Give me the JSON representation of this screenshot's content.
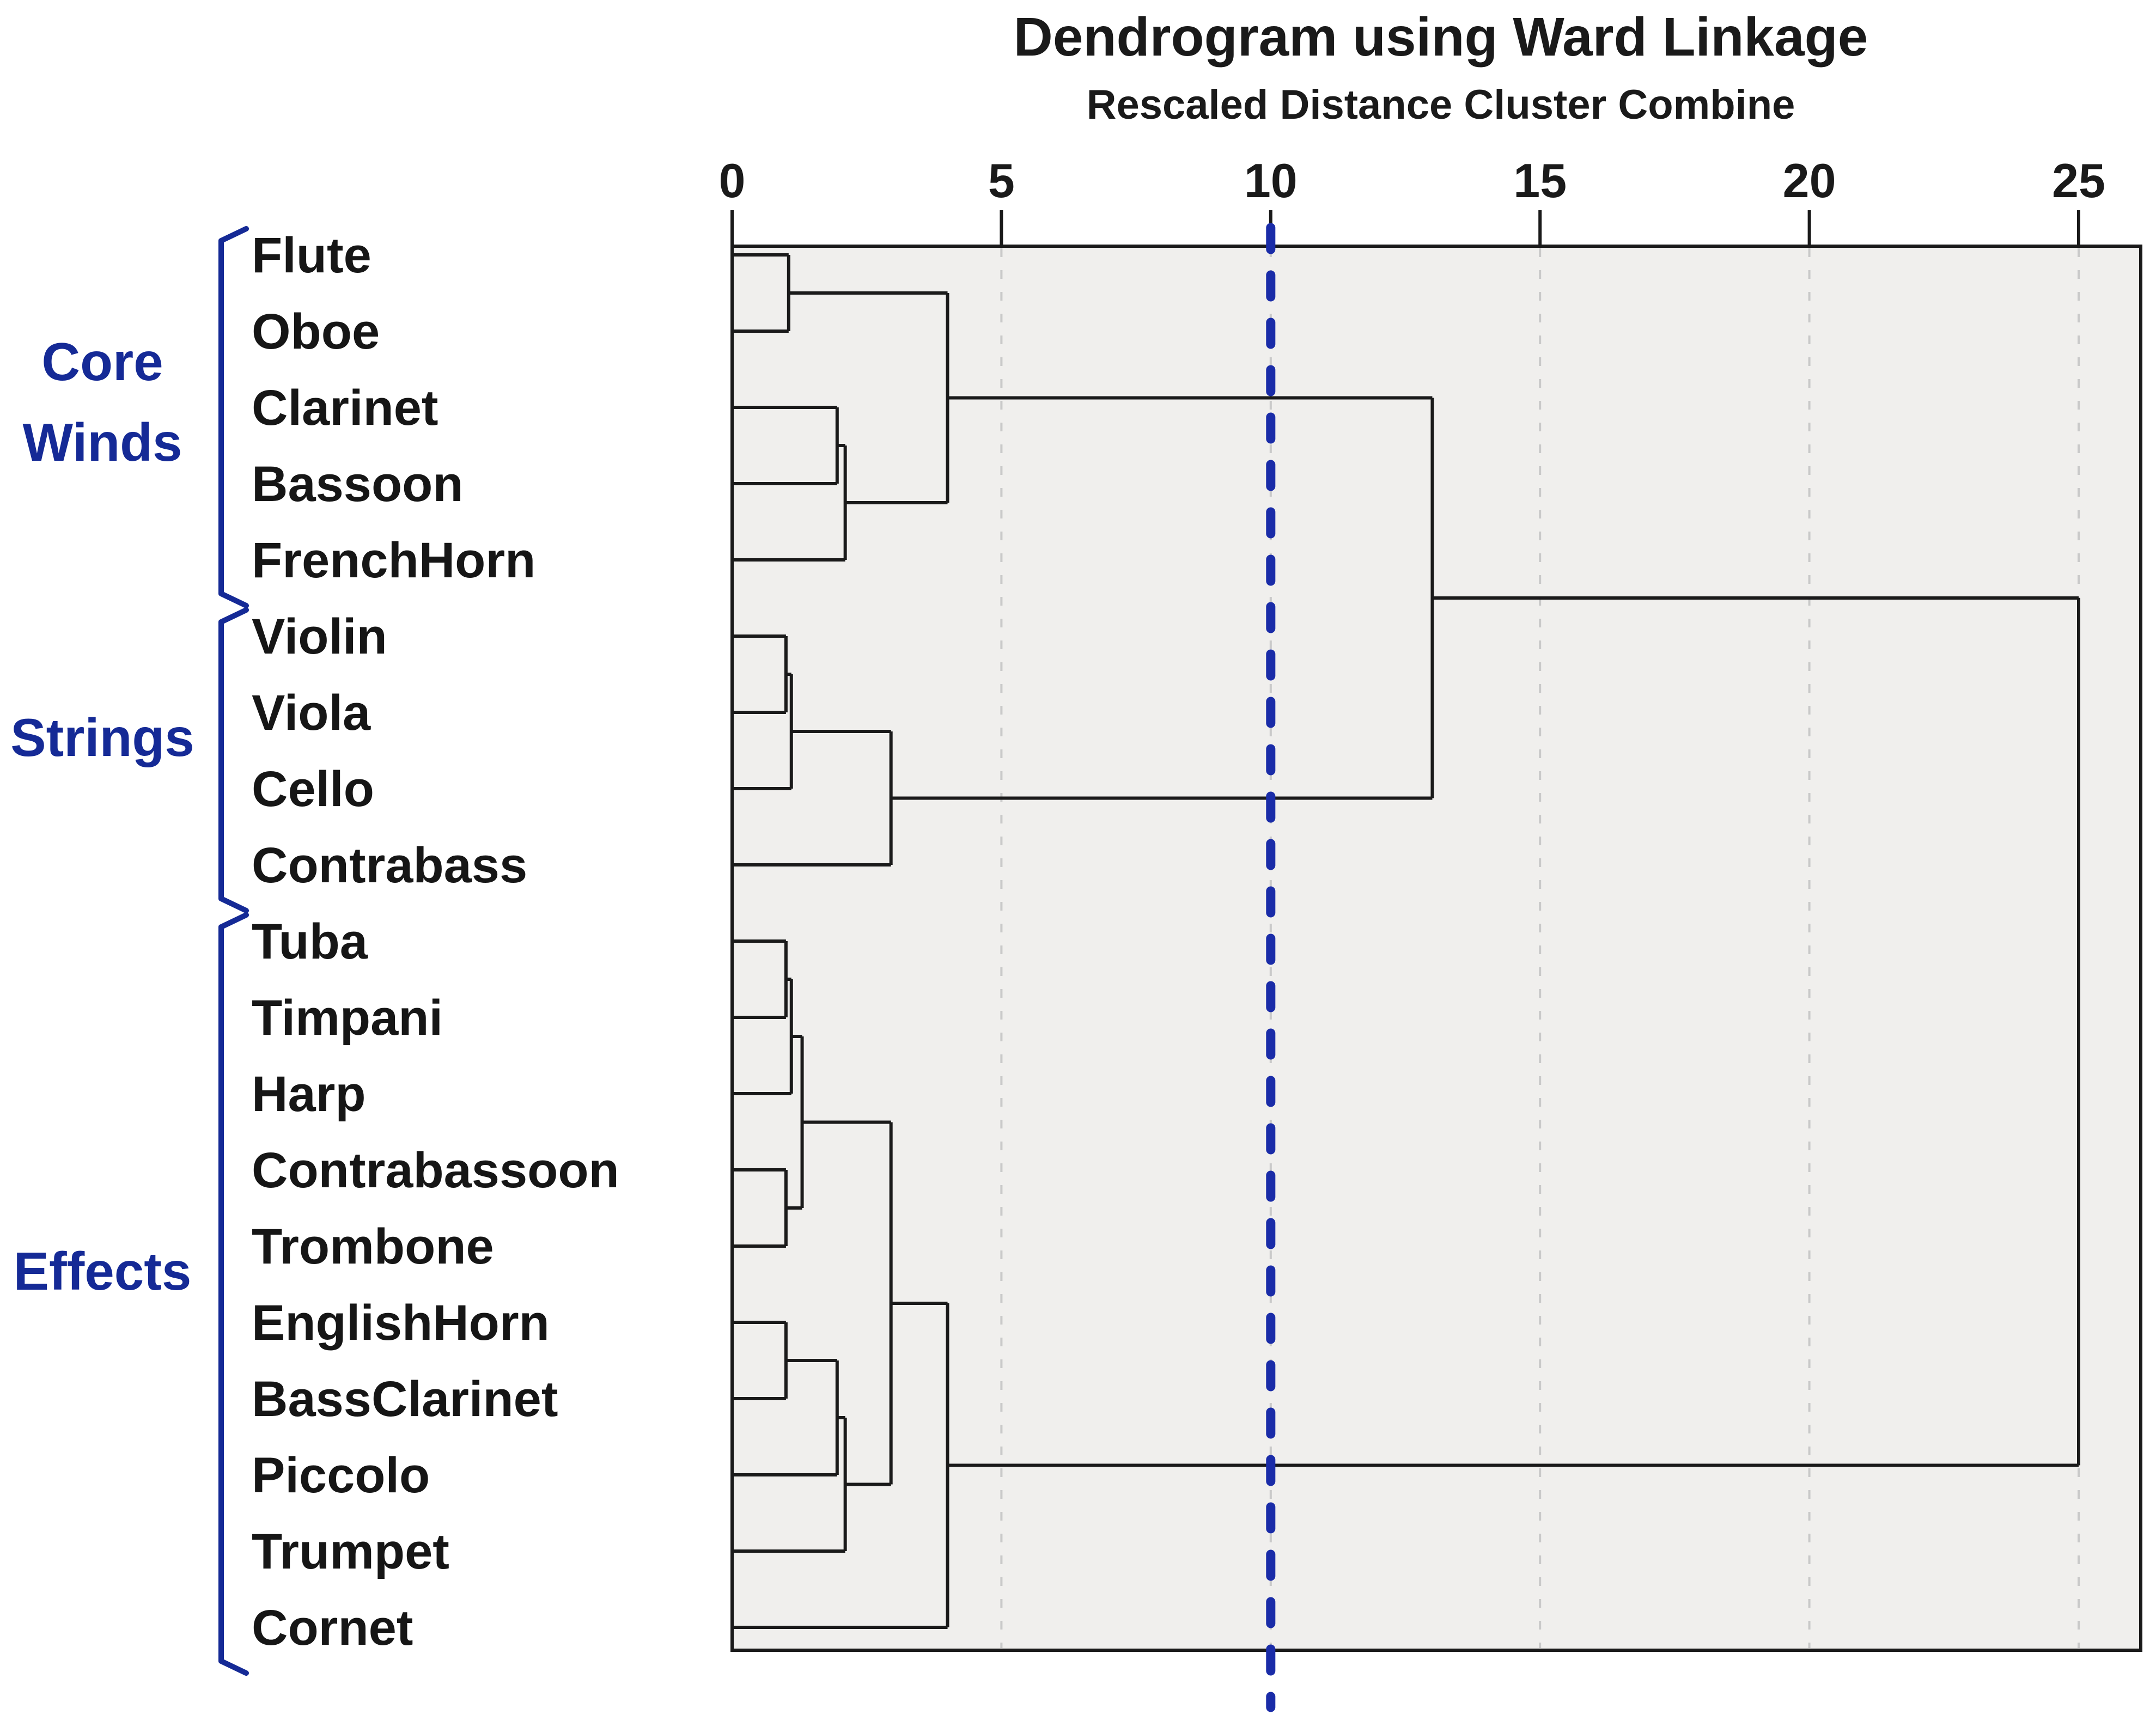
{
  "title": "Dendrogram using Ward Linkage",
  "subtitle": "Rescaled Distance Cluster Combine",
  "axis": {
    "ticks": [
      "0",
      "5",
      "10",
      "15",
      "20",
      "25"
    ],
    "tick_values": [
      0,
      5,
      10,
      15,
      20,
      25
    ],
    "min": 0,
    "max": 25
  },
  "colors": {
    "page_bg": "#ffffff",
    "plot_bg": "#f0efed",
    "dendrogram_line": "#1a1a1a",
    "plot_border": "#1a1a1a",
    "gridline": "#c9c9c9",
    "cut_line_blue": "#1a2ca8",
    "group_blue": "#152a96"
  },
  "cut_line": {
    "at_value": 10,
    "style": "dotted"
  },
  "groups": [
    {
      "id": "core-winds",
      "label_lines": [
        "Core",
        "Winds"
      ],
      "leaves": [
        "Flute",
        "Oboe",
        "Clarinet",
        "Bassoon",
        "FrenchHorn"
      ]
    },
    {
      "id": "strings",
      "label_lines": [
        "Strings"
      ],
      "leaves": [
        "Violin",
        "Viola",
        "Cello",
        "Contrabass"
      ]
    },
    {
      "id": "effects",
      "label_lines": [
        "Effects"
      ],
      "leaves": [
        "Tuba",
        "Timpani",
        "Harp",
        "Contrabassoon",
        "Trombone",
        "EnglishHorn",
        "BassClarinet",
        "Piccolo",
        "Trumpet",
        "Cornet"
      ]
    }
  ],
  "chart_data": {
    "type": "dendrogram",
    "orientation": "left-to-right",
    "title": "Dendrogram using Ward Linkage",
    "subtitle": "Rescaled Distance Cluster Combine",
    "distance_axis": {
      "min": 0,
      "max": 25,
      "ticks": [
        0,
        5,
        10,
        15,
        20,
        25
      ],
      "gridlines_at": [
        5,
        10,
        15,
        20,
        25
      ],
      "grid_style": "dashed"
    },
    "cut_line_at": 10,
    "leaves": [
      "Flute",
      "Oboe",
      "Clarinet",
      "Bassoon",
      "FrenchHorn",
      "Violin",
      "Viola",
      "Cello",
      "Contrabass",
      "Tuba",
      "Timpani",
      "Harp",
      "Contrabassoon",
      "Trombone",
      "EnglishHorn",
      "BassClarinet",
      "Piccolo",
      "Trumpet",
      "Cornet"
    ],
    "merges": [
      {
        "id": "m1",
        "a": "Flute",
        "b": "Oboe",
        "distance": 1.05
      },
      {
        "id": "m2",
        "a": "Clarinet",
        "b": "Bassoon",
        "distance": 1.95
      },
      {
        "id": "m3",
        "a": "m2",
        "b": "FrenchHorn",
        "distance": 2.1
      },
      {
        "id": "m4",
        "a": "m1",
        "b": "m3",
        "distance": 4.0
      },
      {
        "id": "m5",
        "a": "Violin",
        "b": "Viola",
        "distance": 1.0
      },
      {
        "id": "m6",
        "a": "m5",
        "b": "Cello",
        "distance": 1.1
      },
      {
        "id": "m7",
        "a": "m6",
        "b": "Contrabass",
        "distance": 2.95
      },
      {
        "id": "m8",
        "a": "m4",
        "b": "m7",
        "distance": 13.0
      },
      {
        "id": "m9",
        "a": "Tuba",
        "b": "Timpani",
        "distance": 1.0
      },
      {
        "id": "m10",
        "a": "m9",
        "b": "Harp",
        "distance": 1.1
      },
      {
        "id": "m11",
        "a": "Contrabassoon",
        "b": "Trombone",
        "distance": 1.0
      },
      {
        "id": "m12",
        "a": "m10",
        "b": "m11",
        "distance": 1.3
      },
      {
        "id": "m13",
        "a": "EnglishHorn",
        "b": "BassClarinet",
        "distance": 1.0
      },
      {
        "id": "m14",
        "a": "m13",
        "b": "Piccolo",
        "distance": 1.95
      },
      {
        "id": "m15",
        "a": "m14",
        "b": "Trumpet",
        "distance": 2.1
      },
      {
        "id": "m16",
        "a": "m12",
        "b": "m15",
        "distance": 2.95
      },
      {
        "id": "m17",
        "a": "m16",
        "b": "Cornet",
        "distance": 4.0
      },
      {
        "id": "m18",
        "a": "m8",
        "b": "m17",
        "distance": 25.0
      }
    ]
  }
}
